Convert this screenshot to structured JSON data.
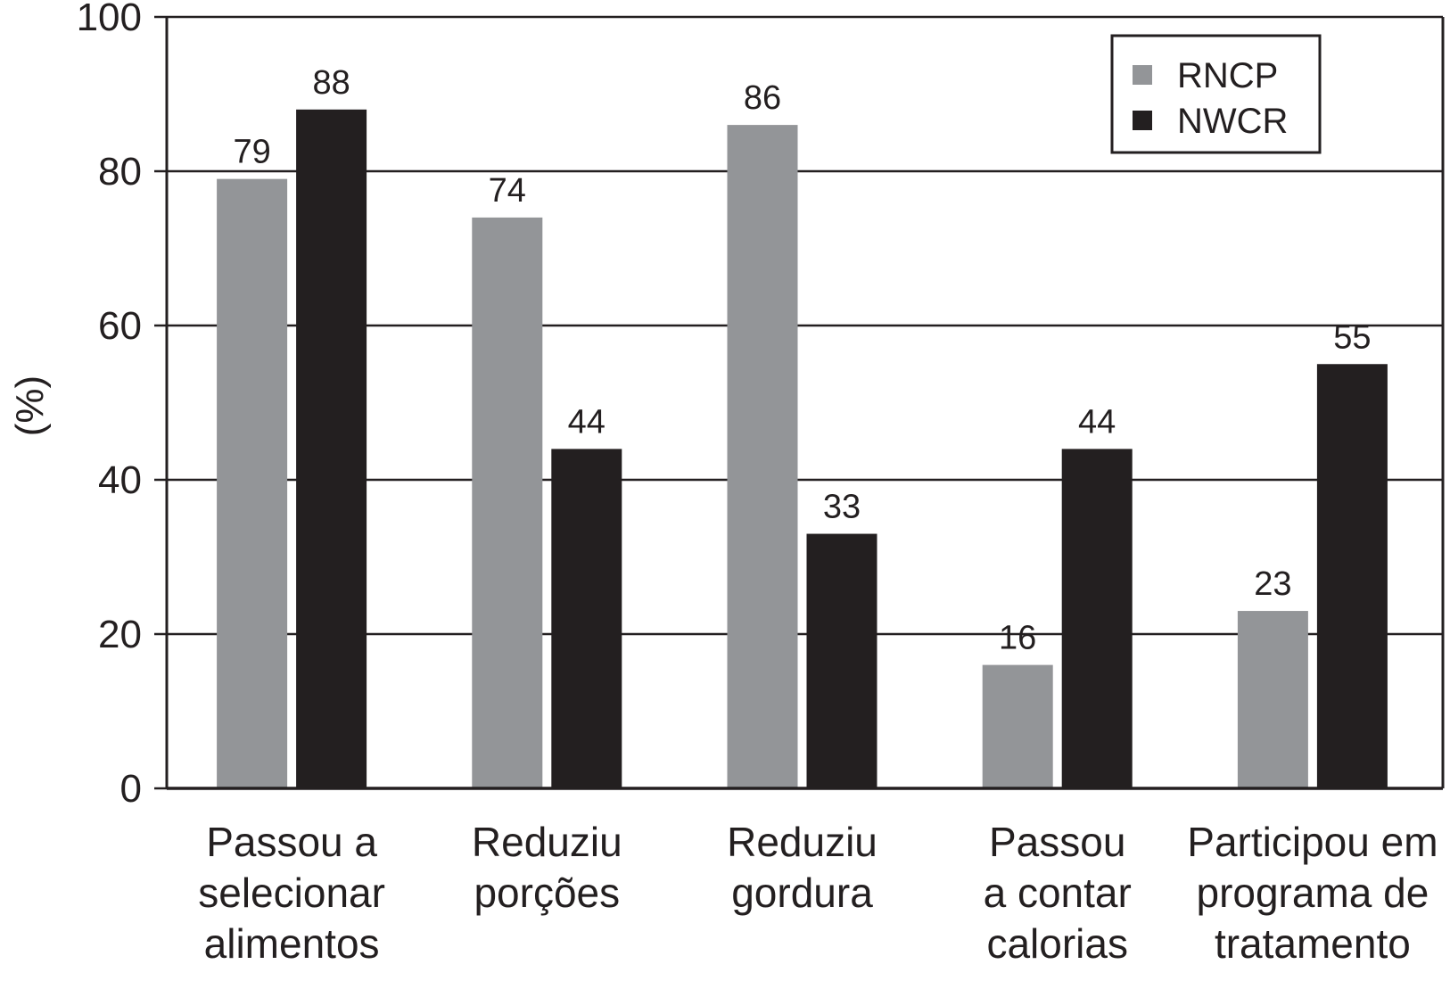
{
  "chart_data": {
    "type": "bar",
    "title": "",
    "xlabel": "",
    "ylabel": "(%)",
    "ylim": [
      0,
      100
    ],
    "yticks": [
      0,
      20,
      40,
      60,
      80,
      100
    ],
    "grid": true,
    "legend_position": "top-right",
    "categories": [
      [
        "Passou a",
        "selecionar",
        "alimentos"
      ],
      [
        "Reduziu",
        "porções"
      ],
      [
        "Reduziu",
        "gordura"
      ],
      [
        "Passou",
        "a contar",
        "calorias"
      ],
      [
        "Participou em",
        "programa de",
        "tratamento"
      ]
    ],
    "series": [
      {
        "name": "RNCP",
        "color": "#939598",
        "values": [
          79,
          74,
          86,
          16,
          23
        ]
      },
      {
        "name": "NWCR",
        "color": "#231f20",
        "values": [
          88,
          44,
          33,
          44,
          55
        ]
      }
    ]
  }
}
